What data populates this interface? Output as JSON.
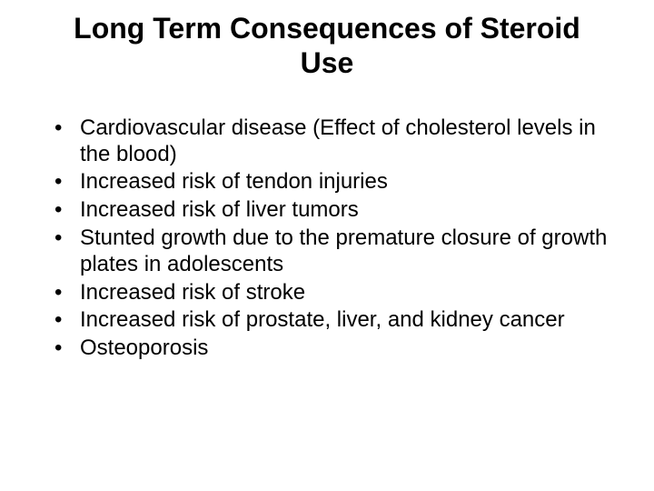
{
  "slide": {
    "title": "Long Term Consequences of Steroid Use",
    "bullets": [
      "Cardiovascular disease (Effect of cholesterol levels in the blood)",
      "Increased risk of tendon injuries",
      "Increased risk of liver tumors",
      "Stunted growth due to the premature closure of growth plates in adolescents",
      "Increased risk of stroke",
      "Increased risk of prostate, liver, and kidney cancer",
      "Osteoporosis"
    ]
  },
  "style": {
    "background_color": "#ffffff",
    "text_color": "#000000",
    "title_fontsize": 32,
    "title_fontweight": "bold",
    "body_fontsize": 24,
    "font_family": "Arial"
  }
}
